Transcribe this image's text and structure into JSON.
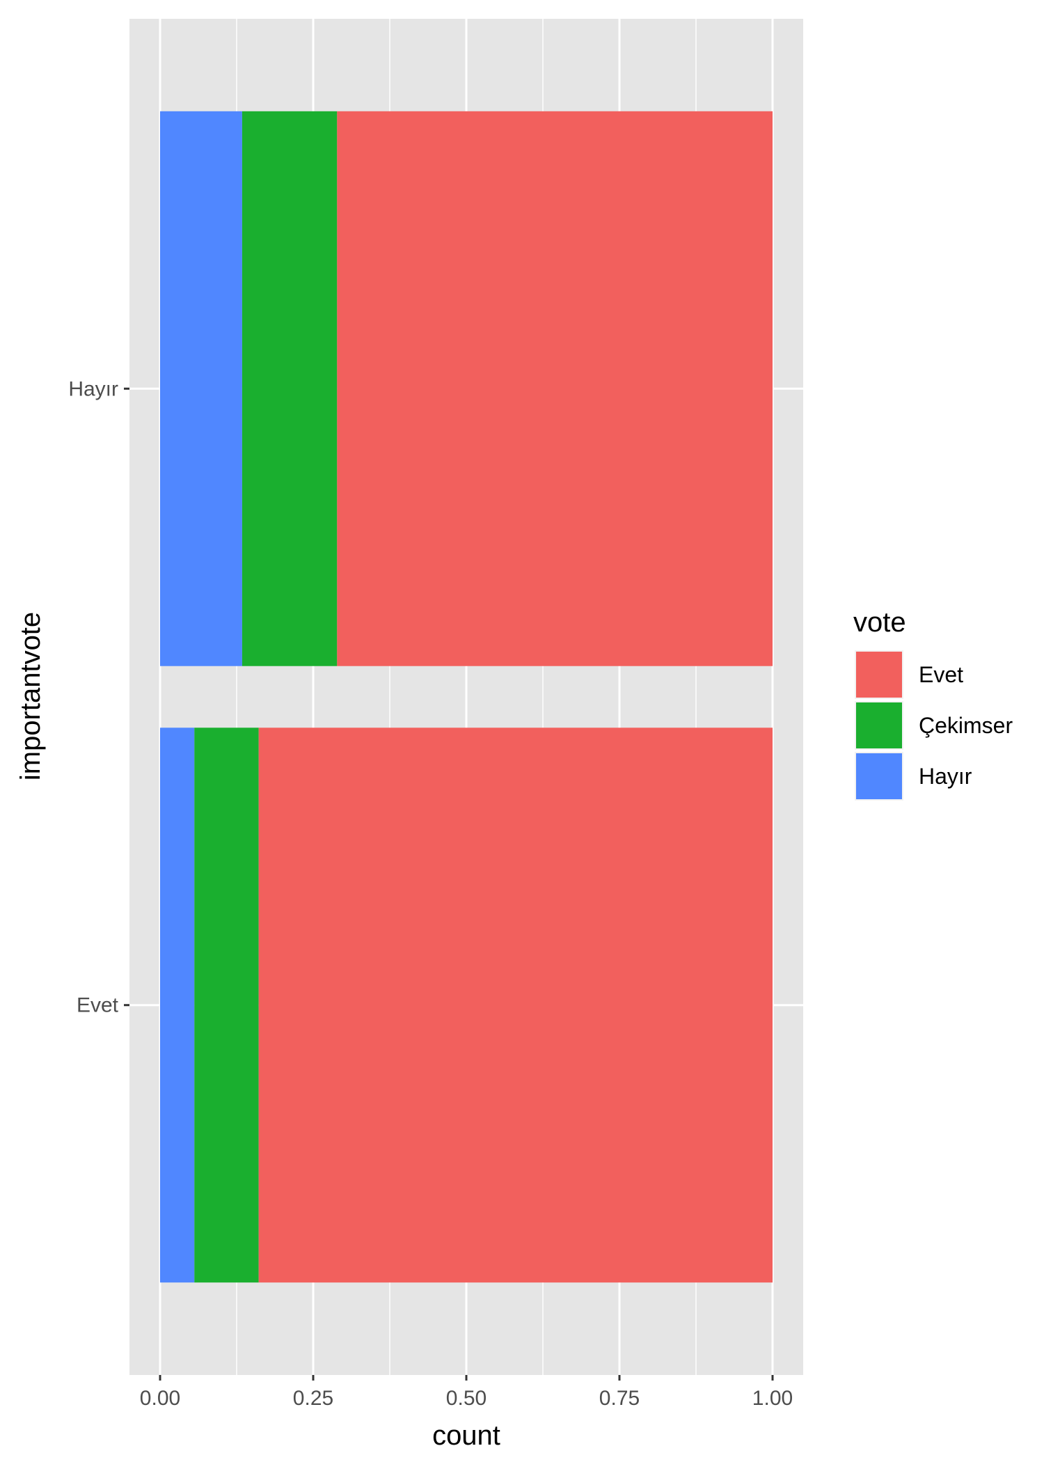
{
  "chart_data": {
    "type": "bar",
    "orientation": "horizontal",
    "stacked": true,
    "categories": [
      "Evet",
      "Hayır"
    ],
    "series": [
      {
        "name": "Hayır",
        "color": "#5087ff",
        "values": [
          0.056,
          0.134
        ]
      },
      {
        "name": "Çekimser",
        "color": "#1aaf2f",
        "values": [
          0.105,
          0.155
        ]
      },
      {
        "name": "Evet",
        "color": "#f2605d",
        "values": [
          0.839,
          0.711
        ]
      }
    ],
    "xlabel": "count",
    "ylabel": "importantvote",
    "xlim": [
      -0.05,
      1.05
    ],
    "xticks": [
      "0.00",
      "0.25",
      "0.50",
      "0.75",
      "1.00"
    ],
    "grid": true,
    "legend": {
      "title": "vote",
      "position": "right",
      "items": [
        "Evet",
        "Çekimser",
        "Hayır"
      ]
    }
  }
}
